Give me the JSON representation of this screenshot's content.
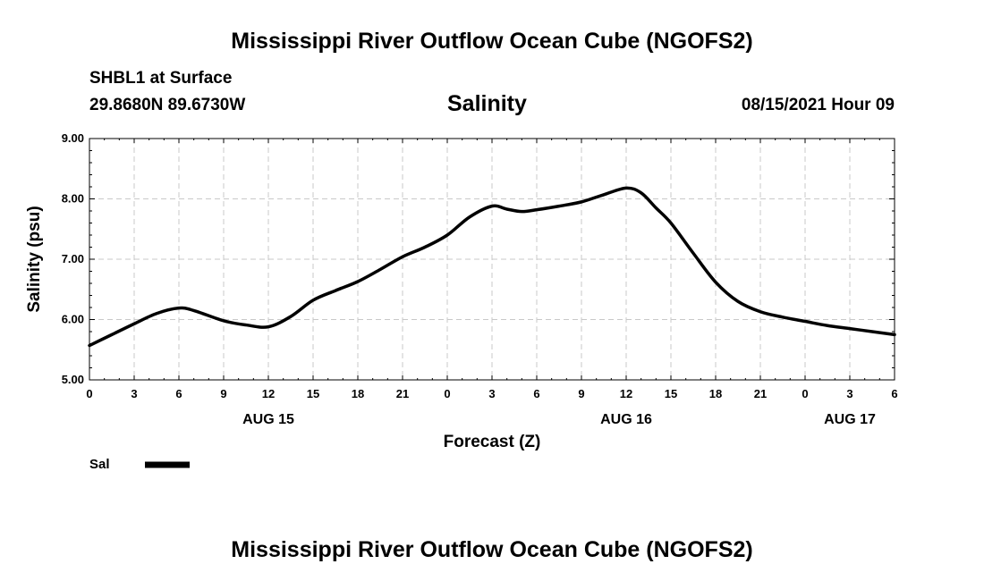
{
  "page": {
    "title_top": "Mississippi River Outflow Ocean Cube (NGOFS2)",
    "title_bottom": "Mississippi River Outflow Ocean Cube (NGOFS2)",
    "station": "SHBL1 at Surface",
    "coords": "29.8680N  89.6730W",
    "timestamp": "08/15/2021 Hour 09"
  },
  "legend": {
    "label": "Sal",
    "color": "#000000"
  },
  "chart_data": {
    "type": "line",
    "title": "Salinity",
    "xlabel": "Forecast (Z)",
    "ylabel": "Salinity (psu)",
    "x_unit": "hours from 08/15 00Z",
    "xlim": [
      0,
      54
    ],
    "ylim": [
      5.0,
      9.0
    ],
    "grid": true,
    "y_ticks": [
      "5.00",
      "6.00",
      "7.00",
      "8.00",
      "9.00"
    ],
    "x_tick_labels": [
      "0",
      "3",
      "6",
      "9",
      "12",
      "15",
      "18",
      "21",
      "0",
      "3",
      "6",
      "9",
      "12",
      "15",
      "18",
      "21",
      "0",
      "3",
      "6"
    ],
    "date_labels": [
      {
        "hour": 12,
        "label": "AUG 15"
      },
      {
        "hour": 36,
        "label": "AUG 16"
      },
      {
        "hour": 51,
        "label": "AUG 17"
      }
    ],
    "series": [
      {
        "name": "Sal",
        "x": [
          0,
          1.5,
          3,
          4.5,
          6,
          7,
          9,
          10.5,
          12,
          13.5,
          15,
          16.5,
          18,
          19.5,
          21,
          22.5,
          24,
          25.5,
          27,
          28,
          29,
          30,
          31.5,
          33,
          34.5,
          36,
          37,
          38,
          39,
          40.5,
          42,
          43.5,
          45,
          46.5,
          48,
          49.5,
          51,
          52.5,
          54
        ],
        "values": [
          5.57,
          5.75,
          5.93,
          6.1,
          6.19,
          6.15,
          5.98,
          5.91,
          5.88,
          6.05,
          6.32,
          6.48,
          6.63,
          6.83,
          7.04,
          7.2,
          7.4,
          7.7,
          7.88,
          7.83,
          7.79,
          7.82,
          7.88,
          7.95,
          8.07,
          8.18,
          8.1,
          7.85,
          7.6,
          7.1,
          6.62,
          6.3,
          6.13,
          6.04,
          5.97,
          5.9,
          5.85,
          5.8,
          5.75
        ]
      }
    ]
  }
}
